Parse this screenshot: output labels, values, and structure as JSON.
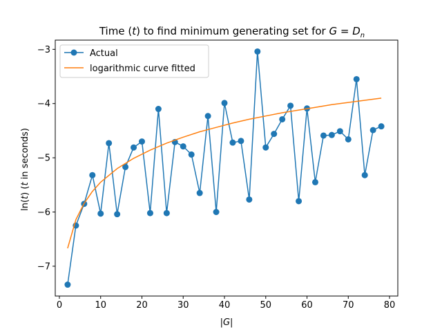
{
  "chart_data": {
    "type": "line",
    "title": "Time (t) to find minimum generating set for G = D_n",
    "title_parts": {
      "prefix": "Time (",
      "t": "t",
      "mid": ") to find minimum generating set for ",
      "G": "G",
      "eq": " = ",
      "D": "D",
      "n": "n"
    },
    "xlabel": "|G|",
    "ylabel": "ln(t) (t in seconds)",
    "ylabel_parts": {
      "ln": "ln(",
      "t1": "t",
      "mid": ") (",
      "t2": "t",
      "tail": " in seconds)"
    },
    "xlim": [
      -1,
      82
    ],
    "ylim": [
      -7.55,
      -2.83
    ],
    "xticks": [
      0,
      10,
      20,
      30,
      40,
      50,
      60,
      70,
      80
    ],
    "yticks": [
      -7,
      -6,
      -5,
      -4,
      -3
    ],
    "ytick_labels": [
      "−7",
      "−6",
      "−5",
      "−4",
      "−3"
    ],
    "grid": false,
    "legend_position": "top-left",
    "series": [
      {
        "name": "Actual",
        "color": "#1f77b4",
        "marker": "circle",
        "x": [
          2,
          4,
          6,
          8,
          10,
          12,
          14,
          16,
          18,
          20,
          22,
          24,
          26,
          28,
          30,
          32,
          34,
          36,
          38,
          40,
          42,
          44,
          46,
          48,
          50,
          52,
          54,
          56,
          58,
          60,
          62,
          64,
          66,
          68,
          70,
          72,
          74,
          76,
          78
        ],
        "y": [
          -7.34,
          -6.25,
          -5.85,
          -5.32,
          -6.03,
          -4.73,
          -6.04,
          -5.17,
          -4.81,
          -4.7,
          -6.02,
          -4.1,
          -6.02,
          -4.71,
          -4.79,
          -4.94,
          -5.65,
          -4.23,
          -6.0,
          -3.99,
          -4.72,
          -4.69,
          -5.77,
          -3.04,
          -4.81,
          -4.56,
          -4.29,
          -4.04,
          -5.8,
          -4.09,
          -5.45,
          -4.59,
          -4.58,
          -4.51,
          -4.66,
          -3.55,
          -5.32,
          -4.49,
          -4.42
        ]
      },
      {
        "name": "logarithmic curve fitted",
        "color": "#ff7f0e",
        "marker": "none",
        "x": [
          2,
          4,
          6,
          8,
          10,
          14,
          18,
          22,
          26,
          30,
          34,
          38,
          42,
          46,
          50,
          54,
          58,
          62,
          66,
          70,
          74,
          78
        ],
        "y": [
          -6.67,
          -6.14,
          -5.84,
          -5.62,
          -5.45,
          -5.2,
          -5.01,
          -4.86,
          -4.73,
          -4.62,
          -4.52,
          -4.44,
          -4.36,
          -4.29,
          -4.23,
          -4.17,
          -4.12,
          -4.07,
          -4.02,
          -3.98,
          -3.94,
          -3.9
        ]
      }
    ]
  }
}
